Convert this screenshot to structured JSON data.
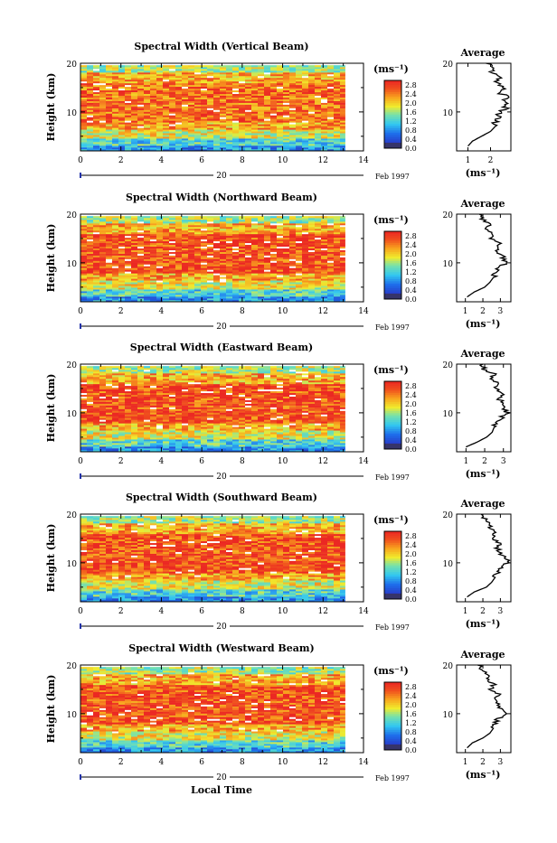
{
  "chart_data": {
    "type": "heatmap",
    "panels": [
      {
        "title": "Spectral Width (Vertical Beam)",
        "avg_ticks": [
          "1",
          "2"
        ],
        "avg_max": 2.9,
        "profile": [
          [
            1.0,
            3
          ],
          [
            1.2,
            4
          ],
          [
            1.6,
            5
          ],
          [
            2.0,
            6
          ],
          [
            2.2,
            7
          ],
          [
            2.25,
            8
          ],
          [
            2.3,
            9
          ],
          [
            2.5,
            10
          ],
          [
            2.7,
            11
          ],
          [
            2.6,
            12
          ],
          [
            2.8,
            13
          ],
          [
            2.4,
            14
          ],
          [
            2.6,
            15
          ],
          [
            2.2,
            16
          ],
          [
            2.5,
            17
          ],
          [
            2.0,
            18
          ],
          [
            2.3,
            19
          ],
          [
            1.8,
            20
          ]
        ]
      },
      {
        "title": "Spectral Width (Northward Beam)",
        "avg_ticks": [
          "1",
          "2",
          "3"
        ],
        "avg_max": 3.6,
        "profile": [
          [
            1.1,
            3
          ],
          [
            1.5,
            4
          ],
          [
            2.1,
            5
          ],
          [
            2.4,
            6
          ],
          [
            2.6,
            7
          ],
          [
            2.7,
            8
          ],
          [
            2.9,
            9
          ],
          [
            3.3,
            10
          ],
          [
            3.2,
            11
          ],
          [
            2.9,
            12
          ],
          [
            2.7,
            13
          ],
          [
            2.9,
            14
          ],
          [
            2.5,
            15
          ],
          [
            2.6,
            16
          ],
          [
            2.3,
            17
          ],
          [
            2.4,
            18
          ],
          [
            2.0,
            19
          ],
          [
            1.8,
            20
          ]
        ]
      },
      {
        "title": "Spectral Width (Eastward Beam)",
        "avg_ticks": [
          "1",
          "2",
          "3"
        ],
        "avg_max": 3.4,
        "profile": [
          [
            1.0,
            3
          ],
          [
            1.6,
            4
          ],
          [
            2.1,
            5
          ],
          [
            2.4,
            6
          ],
          [
            2.5,
            7
          ],
          [
            2.6,
            8
          ],
          [
            2.9,
            9
          ],
          [
            3.2,
            10
          ],
          [
            3.0,
            11
          ],
          [
            3.1,
            12
          ],
          [
            2.7,
            13
          ],
          [
            3.0,
            14
          ],
          [
            2.6,
            15
          ],
          [
            2.8,
            16
          ],
          [
            2.3,
            17
          ],
          [
            2.5,
            18
          ],
          [
            2.0,
            19
          ],
          [
            1.9,
            20
          ]
        ]
      },
      {
        "title": "Spectral Width (Southward Beam)",
        "avg_ticks": [
          "1",
          "2",
          "3"
        ],
        "avg_max": 3.6,
        "profile": [
          [
            1.1,
            3
          ],
          [
            1.5,
            4
          ],
          [
            2.2,
            5
          ],
          [
            2.5,
            6
          ],
          [
            2.7,
            7
          ],
          [
            2.8,
            8
          ],
          [
            3.0,
            9
          ],
          [
            3.4,
            10
          ],
          [
            3.3,
            11
          ],
          [
            3.0,
            12
          ],
          [
            2.8,
            13
          ],
          [
            3.0,
            14
          ],
          [
            2.6,
            15
          ],
          [
            2.7,
            16
          ],
          [
            2.4,
            17
          ],
          [
            2.5,
            18
          ],
          [
            2.1,
            19
          ],
          [
            1.9,
            20
          ]
        ]
      },
      {
        "title": "Spectral Width (Westward Beam)",
        "avg_ticks": [
          "1",
          "2",
          "3"
        ],
        "avg_max": 3.6,
        "profile": [
          [
            1.1,
            3
          ],
          [
            1.4,
            4
          ],
          [
            2.0,
            5
          ],
          [
            2.4,
            6
          ],
          [
            2.6,
            7
          ],
          [
            2.7,
            8
          ],
          [
            2.9,
            9
          ],
          [
            3.3,
            10
          ],
          [
            3.1,
            11
          ],
          [
            2.8,
            12
          ],
          [
            2.6,
            13
          ],
          [
            2.9,
            14
          ],
          [
            2.4,
            15
          ],
          [
            2.6,
            16
          ],
          [
            2.2,
            17
          ],
          [
            2.4,
            18
          ],
          [
            2.0,
            19
          ],
          [
            1.7,
            20
          ]
        ]
      }
    ],
    "xlabel": "Local Time",
    "ylabel": "Height (km)",
    "date_day": "20",
    "date_month": "Feb 1997",
    "x_ticks": [
      "0",
      "2",
      "4",
      "6",
      "8",
      "10",
      "12",
      "14"
    ],
    "xlim": [
      0,
      14
    ],
    "ylim_km": [
      2,
      20
    ],
    "y_ticks": [
      "20",
      "10"
    ],
    "data_end_hour": 13.1,
    "colorbar_unit": "(ms⁻¹)",
    "colorbar_ticks": [
      "2.8",
      "2.4",
      "2.0",
      "1.6",
      "1.2",
      "0.8",
      "0.4",
      "0.0"
    ],
    "colorbar_range": [
      0.0,
      3.0
    ],
    "avg_title": "Average",
    "avg_unit": "(ms⁻¹)",
    "colors": {
      "red": "#ee3322",
      "orange": "#f7951c",
      "yellow": "#f3e92a",
      "cyan": "#36d2ee",
      "blue": "#1b4fd8",
      "dark": "#36346a"
    }
  }
}
